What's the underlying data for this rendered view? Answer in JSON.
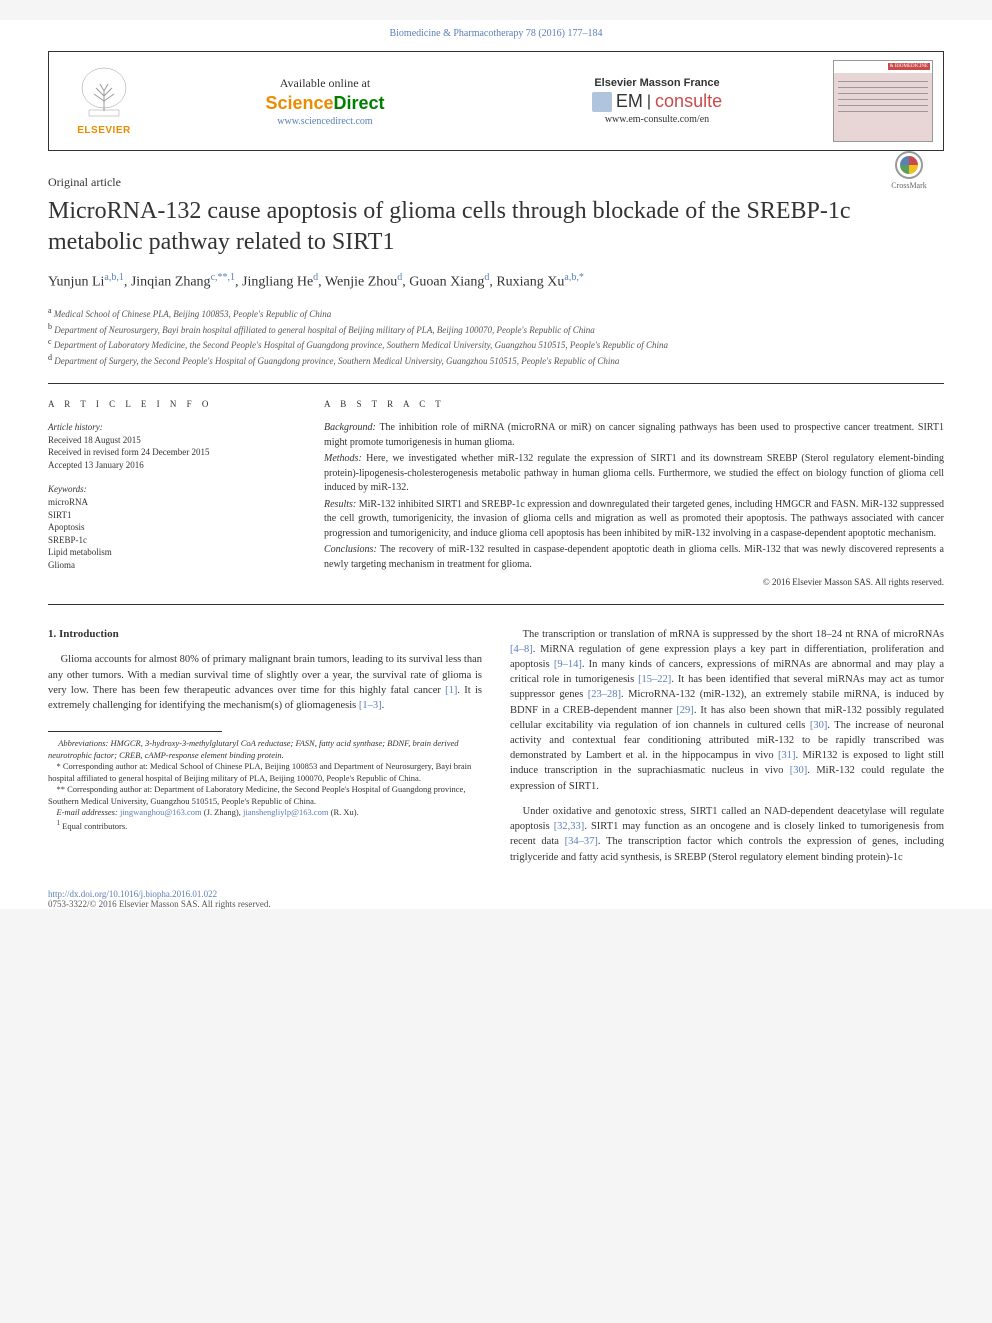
{
  "header_citation": "Biomedicine & Pharmacotherapy 78 (2016) 177–184",
  "banner": {
    "elsevier": "ELSEVIER",
    "available_at": "Available online at",
    "sciencedirect": {
      "s": "Science",
      "d": "Direct"
    },
    "sd_url": "www.sciencedirect.com",
    "em_title": "Elsevier Masson France",
    "em_e": "EM",
    "em_c": "consulte",
    "em_url": "www.em-consulte.com/en",
    "cover_badge": "& BIOMEDICINE"
  },
  "crossmark": "CrossMark",
  "article_type": "Original article",
  "title": "MicroRNA-132 cause apoptosis of glioma cells through blockade of the SREBP-1c metabolic pathway related to SIRT1",
  "authors_html": "Yunjun Li<sup>a,b,1</sup>, Jinqian Zhang<sup>c,**,1</sup>, Jingliang He<sup>d</sup>, Wenjie Zhou<sup>d</sup>, Guoan Xiang<sup>d</sup>, Ruxiang Xu<sup>a,b,*</sup>",
  "affiliations": [
    {
      "sup": "a",
      "text": "Medical School of Chinese PLA, Beijing 100853, People's Republic of China"
    },
    {
      "sup": "b",
      "text": "Department of Neurosurgery, Bayi brain hospital affiliated to general hospital of Beijing military of PLA, Beijing 100070, People's Republic of China"
    },
    {
      "sup": "c",
      "text": "Department of Laboratory Medicine, the Second People's Hospital of Guangdong province, Southern Medical University, Guangzhou 510515, People's Republic of China"
    },
    {
      "sup": "d",
      "text": "Department of Surgery, the Second People's Hospital of Guangdong province, Southern Medical University, Guangzhou 510515, People's Republic of China"
    }
  ],
  "info": {
    "label": "A R T I C L E   I N F O",
    "history_head": "Article history:",
    "received": "Received 18 August 2015",
    "revised": "Received in revised form 24 December 2015",
    "accepted": "Accepted 13 January 2016",
    "keywords_head": "Keywords:",
    "keywords": [
      "microRNA",
      "SIRT1",
      "Apoptosis",
      "SREBP-1c",
      "Lipid metabolism",
      "Glioma"
    ]
  },
  "abstract": {
    "label": "A B S T R A C T",
    "background": "Background: The inhibition role of miRNA (microRNA or miR) on cancer signaling pathways has been used to prospective cancer treatment. SIRT1 might promote tumorigenesis in human glioma.",
    "methods": "Methods: Here, we investigated whether miR-132 regulate the expression of SIRT1 and its downstream SREBP (Sterol regulatory element-binding protein)-lipogenesis-cholesterogenesis metabolic pathway in human glioma cells. Furthermore, we studied the effect on biology function of glioma cell induced by miR-132.",
    "results": "Results: MiR-132 inhibited SIRT1 and SREBP-1c expression and downregulated their targeted genes, including HMGCR and FASN. MiR-132 suppressed the cell growth, tumorigenicity, the invasion of glioma cells and migration as well as promoted their apoptosis. The pathways associated with cancer progression and tumorigenicity, and induce glioma cell apoptosis has been inhibited by miR-132 involving in a caspase-dependent apoptotic mechanism.",
    "conclusions": "Conclusions: The recovery of miR-132 resulted in caspase-dependent apoptotic death in glioma cells. MiR-132 that was newly discovered represents a newly targeting mechanism in treatment for glioma.",
    "copyright": "© 2016 Elsevier Masson SAS. All rights reserved."
  },
  "body": {
    "intro_head": "1. Introduction",
    "intro_p1": "Glioma accounts for almost 80% of primary malignant brain tumors, leading to its survival less than any other tumors. With a median survival time of slightly over a year, the survival rate of glioma is very low. There has been few therapeutic advances over time for this highly fatal cancer ",
    "intro_p1_ref1": "[1]",
    "intro_p1_b": ". It is extremely challenging for identifying the mechanism(s) of gliomagenesis ",
    "intro_p1_ref2": "[1–3]",
    "intro_p1_c": ".",
    "col2_p1_a": "The transcription or translation of mRNA is suppressed by the short 18–24 nt RNA of microRNAs ",
    "col2_p1_r1": "[4–8]",
    "col2_p1_b": ". MiRNA regulation of gene expression plays a key part in differentiation, proliferation and apoptosis ",
    "col2_p1_r2": "[9–14]",
    "col2_p1_c": ". In many kinds of cancers, expressions of miRNAs are abnormal and may play a critical role in tumorigenesis ",
    "col2_p1_r3": "[15–22]",
    "col2_p1_d": ". It has been identified that several miRNAs may act as tumor suppressor genes ",
    "col2_p1_r4": "[23–28]",
    "col2_p1_e": ". MicroRNA-132 (miR-132), an extremely stabile miRNA, is induced by BDNF in a CREB-dependent manner ",
    "col2_p1_r5": "[29]",
    "col2_p1_f": ". It has also been shown that miR-132 possibly regulated cellular excitability via regulation of ion channels in cultured cells ",
    "col2_p1_r6": "[30]",
    "col2_p1_g": ". The increase of neuronal activity and contextual fear conditioning attributed miR-132 to be rapidly transcribed was demonstrated by Lambert et al. in the hippocampus in vivo ",
    "col2_p1_r7": "[31]",
    "col2_p1_h": ". MiR132 is exposed to light still induce transcription in the suprachiasmatic nucleus in vivo ",
    "col2_p1_r8": "[30]",
    "col2_p1_i": ". MiR-132 could regulate the expression of SIRT1.",
    "col2_p2_a": "Under oxidative and genotoxic stress, SIRT1 called an NAD-dependent deacetylase will regulate apoptosis ",
    "col2_p2_r1": "[32,33]",
    "col2_p2_b": ". SIRT1 may function as an oncogene and is closely linked to tumorigenesis from recent data ",
    "col2_p2_r2": "[34–37]",
    "col2_p2_c": ". The transcription factor which controls the expression of genes, including triglyceride and fatty acid synthesis, is SREBP (Sterol regulatory element binding protein)-1c"
  },
  "footnotes": {
    "abbrev": "Abbreviations: HMGCR, 3-hydroxy-3-methylglutaryl CoA reductase; FASN, fatty acid synthase; BDNF, brain derived neurotrophic factor; CREB, cAMP-response element binding protein.",
    "corr1": "* Corresponding author at: Medical School of Chinese PLA, Beijing 100853 and Department of Neurosurgery, Bayi brain hospital affiliated to general hospital of Beijing military of PLA, Beijing 100070, People's Republic of China.",
    "corr2": "** Corresponding author at: Department of Laboratory Medicine, the Second People's Hospital of Guangdong province, Southern Medical University, Guangzhou 510515, People's Republic of China.",
    "emails_pre": "E-mail addresses: ",
    "email1": "jingwanghou@163.com",
    "email1_who": " (J. Zhang), ",
    "email2": "jianshengliylp@163.com",
    "email2_who": " (R. Xu).",
    "equal": "Equal contributors."
  },
  "doi": "http://dx.doi.org/10.1016/j.biopha.2016.01.022",
  "issn": "0753-3322/© 2016 Elsevier Masson SAS. All rights reserved.",
  "colors": {
    "link": "#5a7fb8",
    "elsevier_orange": "#eb8c00",
    "sd_green": "#008000",
    "em_red": "#c94a4a"
  }
}
